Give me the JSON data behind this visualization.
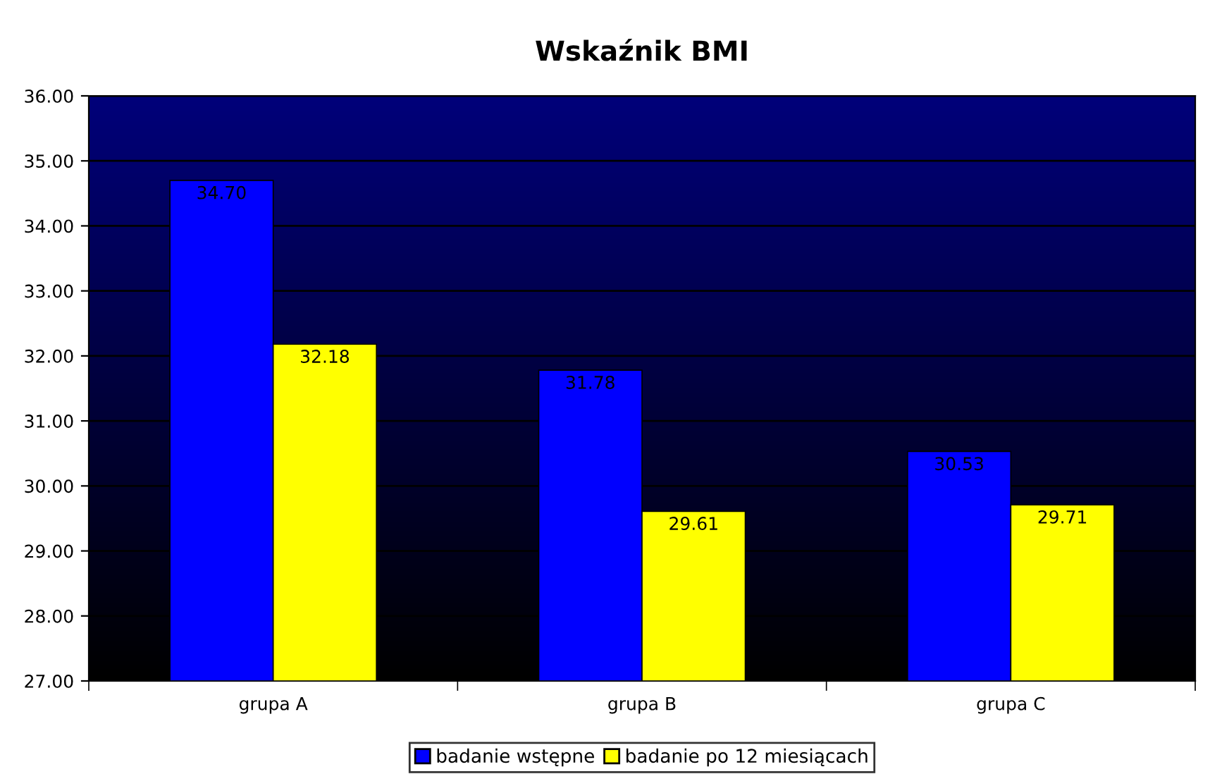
{
  "chart_data": {
    "type": "bar",
    "title": "Wskaźnik BMI",
    "categories": [
      "grupa A",
      "grupa B",
      "grupa C"
    ],
    "series": [
      {
        "name": "badanie wstępne",
        "color": "#0000ff",
        "values": [
          34.7,
          31.78,
          30.53
        ],
        "value_labels": [
          "34.70",
          "31.78",
          "30.53"
        ]
      },
      {
        "name": "badanie po 12 miesiącach",
        "color": "#ffff00",
        "values": [
          32.18,
          29.61,
          29.71
        ],
        "value_labels": [
          "32.18",
          "29.61",
          "29.71"
        ]
      }
    ],
    "ylim": [
      27,
      36
    ],
    "yticks": [
      {
        "value": 27,
        "label": "27.00"
      },
      {
        "value": 28,
        "label": "28.00"
      },
      {
        "value": 29,
        "label": "29.00"
      },
      {
        "value": 30,
        "label": "30.00"
      },
      {
        "value": 31,
        "label": "31.00"
      },
      {
        "value": 32,
        "label": "32.00"
      },
      {
        "value": 33,
        "label": "33.00"
      },
      {
        "value": 34,
        "label": "34.00"
      },
      {
        "value": 35,
        "label": "35.00"
      },
      {
        "value": 36,
        "label": "36.00"
      }
    ],
    "grid": "y",
    "legend": "bottom"
  }
}
